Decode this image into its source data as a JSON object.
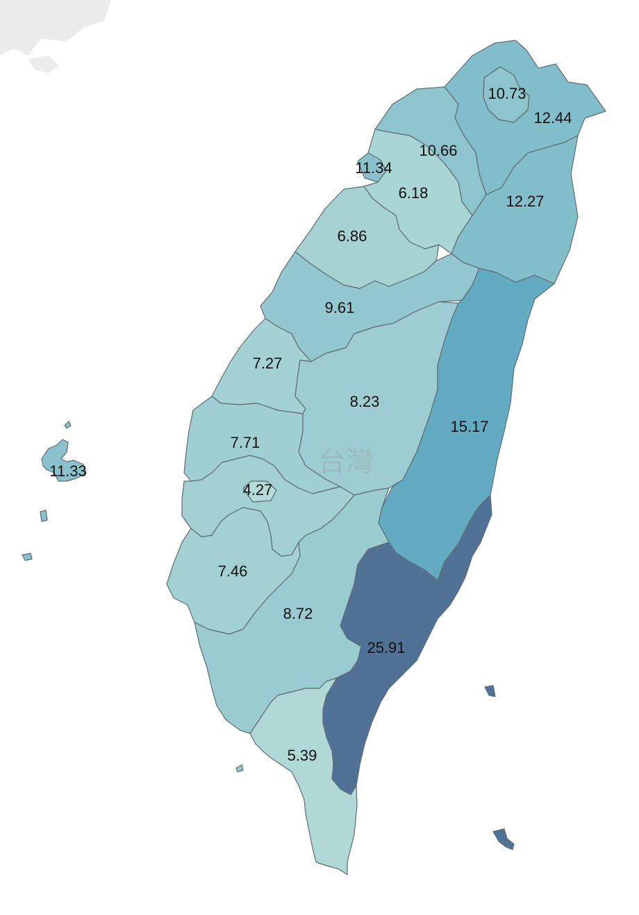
{
  "map": {
    "watermark": "台灣",
    "colors": {
      "low": "#b8ddd9",
      "mid": "#9ccbd1",
      "high": "#63abc3",
      "max": "#517297",
      "border": "#5f6b73",
      "neighbor": "#ececec"
    },
    "regions": [
      {
        "id": "taipei",
        "value": "10.73"
      },
      {
        "id": "new-taipei",
        "value": "12.44"
      },
      {
        "id": "taoyuan",
        "value": "10.66"
      },
      {
        "id": "hsinchu-city",
        "value": "11.34"
      },
      {
        "id": "hsinchu-county",
        "value": "6.18"
      },
      {
        "id": "yilan",
        "value": "12.27"
      },
      {
        "id": "miaoli",
        "value": "6.86"
      },
      {
        "id": "taichung",
        "value": "9.61"
      },
      {
        "id": "changhua",
        "value": "7.27"
      },
      {
        "id": "nantou",
        "value": "8.23"
      },
      {
        "id": "hualien",
        "value": "15.17"
      },
      {
        "id": "yunlin",
        "value": "7.71"
      },
      {
        "id": "chiayi-city",
        "value": "4.27"
      },
      {
        "id": "chiayi-county",
        "value": "7.46"
      },
      {
        "id": "tainan",
        "value": "7.46"
      },
      {
        "id": "kaohsiung",
        "value": "8.72"
      },
      {
        "id": "taitung",
        "value": "25.91"
      },
      {
        "id": "pingtung",
        "value": "5.39"
      },
      {
        "id": "penghu",
        "value": "11.33"
      }
    ]
  }
}
